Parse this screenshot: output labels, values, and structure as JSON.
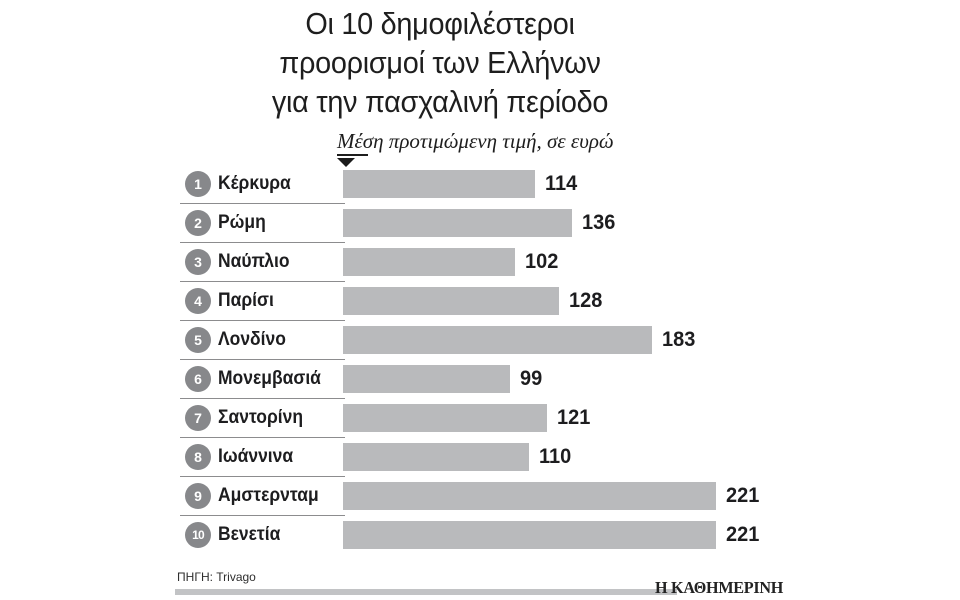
{
  "title": {
    "lines": [
      "Οι 10 δημοφιλέστεροι",
      "προορισμοί των Ελλήνων",
      "για την πασχαλινή περίοδο"
    ]
  },
  "chart_data": {
    "type": "bar",
    "orientation": "horizontal",
    "title": "Οι 10 δημοφιλέστεροι προορισμοί των Ελλήνων για την πασχαλινή περίοδο",
    "value_label": "Μέση προτιμώμενη τιμή, σε ευρώ",
    "ranks": [
      1,
      2,
      3,
      4,
      5,
      6,
      7,
      8,
      9,
      10
    ],
    "categories": [
      "Κέρκυρα",
      "Ρώμη",
      "Ναύπλιο",
      "Παρίσι",
      "Λονδίνο",
      "Μονεμβασιά",
      "Σαντορίνη",
      "Ιωάννινα",
      "Αμστερνταμ",
      "Βενετία"
    ],
    "values": [
      114,
      136,
      102,
      128,
      183,
      99,
      121,
      110,
      221,
      221
    ],
    "bar_color": "#b9babc",
    "badge_color": "#87888b",
    "grid": false,
    "legend": false
  },
  "icons": {
    "marker": "triangle-down"
  },
  "footer": {
    "source": "ΠΗΓΗ: Trivago",
    "brand": "Η ΚΑΘΗΜΕΡΙΝΗ"
  }
}
